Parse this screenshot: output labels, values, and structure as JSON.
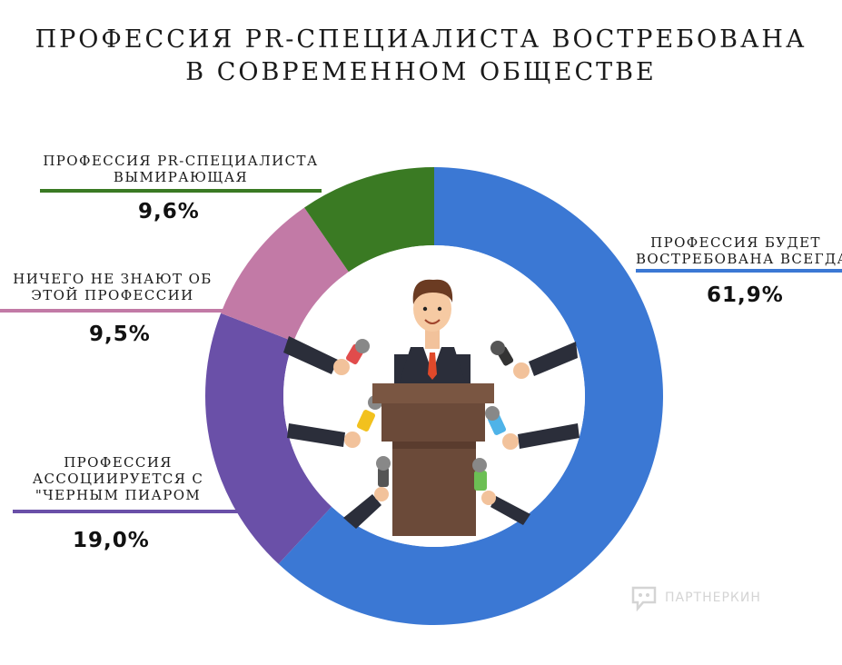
{
  "title_lines": [
    "ПРОФЕССИЯ PR-СПЕЦИАЛИСТА ВОСТРЕБОВАНА",
    "В СОВРЕМЕННОМ ОБЩЕСТВЕ"
  ],
  "chart_data": {
    "type": "pie",
    "variant": "donut",
    "title": "ПРОФЕССИЯ PR-СПЕЦИАЛИСТА ВОСТРЕБОВАНА В СОВРЕМЕННОМ ОБЩЕСТВЕ",
    "slices": [
      {
        "label_lines": [
          "ПРОФЕССИЯ БУДЕТ",
          "ВОСТРЕБОВАНА ВСЕГДА"
        ],
        "value": 61.9,
        "value_label": "61,9%",
        "color": "#3b78d4"
      },
      {
        "label_lines": [
          "ПРОФЕССИЯ",
          "АССОЦИИРУЕТСЯ С",
          "\"ЧЕРНЫМ ПИАРОМ"
        ],
        "value": 19.0,
        "value_label": "19,0%",
        "color": "#6a50a8"
      },
      {
        "label_lines": [
          "НИЧЕГО НЕ ЗНАЮТ ОБ",
          "ЭТОЙ ПРОФЕССИИ"
        ],
        "value": 9.5,
        "value_label": "9,5%",
        "color": "#c27aa6"
      },
      {
        "label_lines": [
          "ПРОФЕССИЯ PR-СПЕЦИАЛИСТА",
          "ВЫМИРАЮЩАЯ"
        ],
        "value": 9.6,
        "value_label": "9,6%",
        "color": "#3a7a23"
      }
    ],
    "legend": "none",
    "center_image": "speaker-at-podium-with-microphones"
  },
  "watermark": {
    "text": "ПАРТНЕРКИН",
    "icon": "chat-bubble-icon"
  }
}
